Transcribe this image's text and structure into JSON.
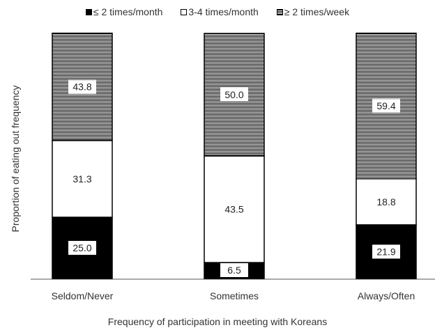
{
  "chart_data": {
    "type": "bar",
    "stacked": true,
    "categories": [
      "Seldom/Never",
      "Sometimes",
      "Always/Often"
    ],
    "series": [
      {
        "name": "≤ 2 times/month",
        "values": [
          25.0,
          6.5,
          21.9
        ],
        "fill": "solid"
      },
      {
        "name": "3-4 times/month",
        "values": [
          31.3,
          43.5,
          18.8
        ],
        "fill": "empty"
      },
      {
        "name": "≥ 2 times/week",
        "values": [
          43.8,
          50.0,
          59.4
        ],
        "fill": "striped"
      }
    ],
    "ylabel": "Proportion of eating out frequency",
    "xlabel": "Frequency of participation in meeting with Koreans",
    "ylim": [
      0,
      100
    ],
    "legend_position": "top",
    "grid": false
  },
  "colors": {
    "solid": "#000000",
    "empty": "#ffffff",
    "stripe": "#000000"
  }
}
